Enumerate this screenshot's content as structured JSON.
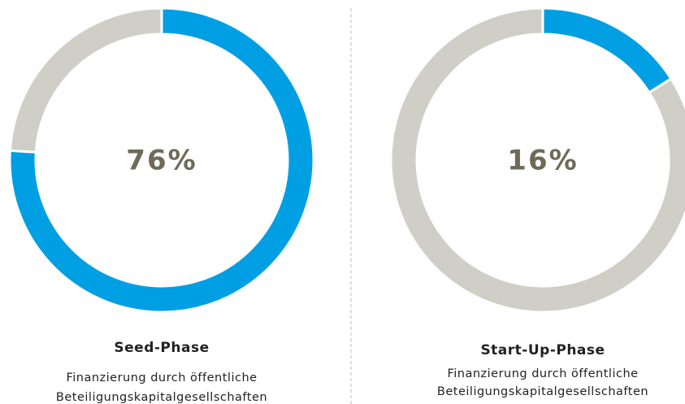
{
  "chart_data": [
    {
      "type": "pie",
      "donut": true,
      "title": "Seed-Phase",
      "subtitle": [
        "Finanzierung durch öffentliche",
        "Beteiligungskapitalgesellschaften"
      ],
      "center_label": "76%",
      "values": [
        76,
        24
      ],
      "colors": [
        "#009fe3",
        "#cfcfc7"
      ]
    },
    {
      "type": "pie",
      "donut": true,
      "title": "Start-Up-Phase",
      "subtitle": [
        "Finanzierung durch öffentliche",
        "Beteiligungskapitalgesellschaften"
      ],
      "center_label": "16%",
      "values": [
        16,
        84
      ],
      "colors": [
        "#009fe3",
        "#cfcfc7"
      ]
    }
  ]
}
